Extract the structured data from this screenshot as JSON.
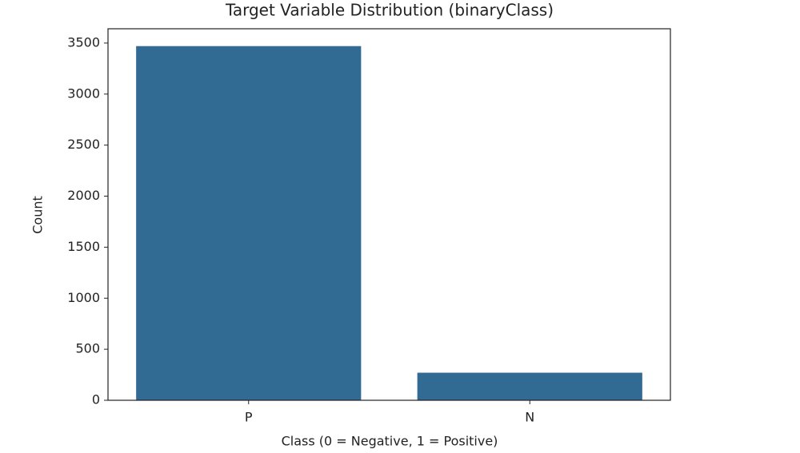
{
  "chart_data": {
    "type": "bar",
    "title": "Target Variable Distribution (binaryClass)",
    "x_label": "Class (0 = Negative, 1 = Positive)",
    "y_label": "Count",
    "categories": [
      "P",
      "N"
    ],
    "values": [
      3470,
      270
    ],
    "color": "#316a93",
    "ylim": [
      0,
      3640
    ],
    "yticks": [
      0,
      500,
      1000,
      1500,
      2000,
      2500,
      3000,
      3500
    ],
    "grid": false
  }
}
